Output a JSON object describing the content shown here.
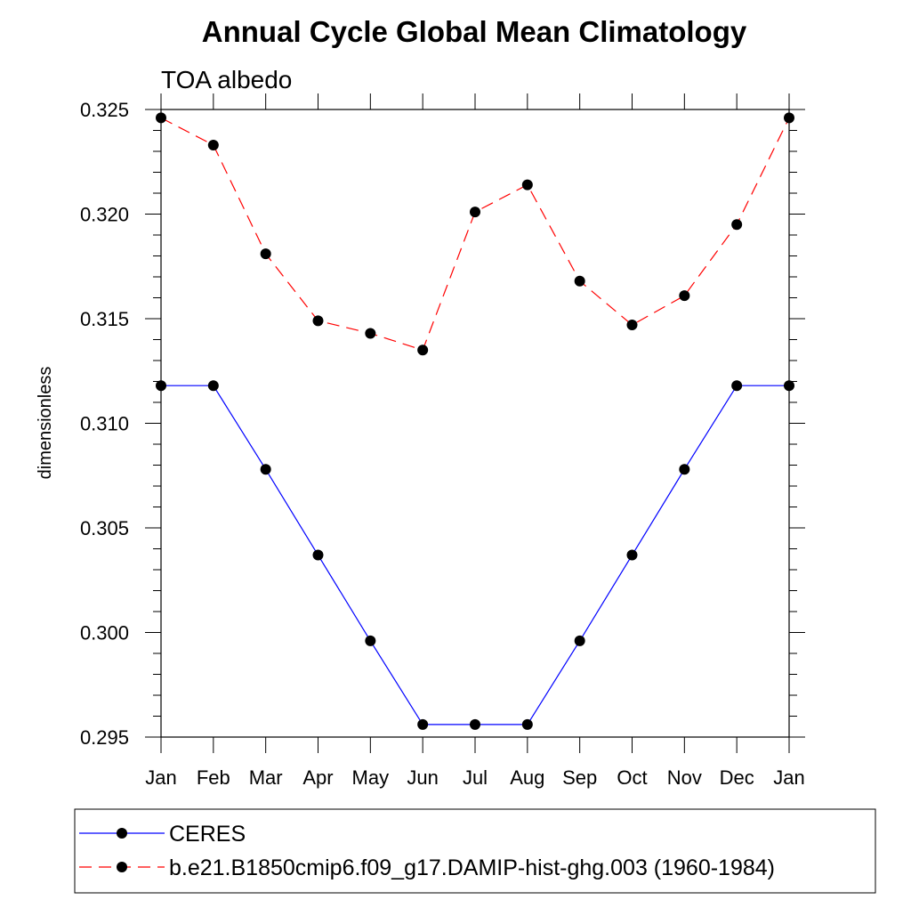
{
  "chart_data": {
    "type": "line",
    "title": "Annual Cycle Global Mean Climatology",
    "subtitle": "TOA albedo",
    "xlabel": "",
    "ylabel": "dimensionless",
    "categories": [
      "Jan",
      "Feb",
      "Mar",
      "Apr",
      "May",
      "Jun",
      "Jul",
      "Aug",
      "Sep",
      "Oct",
      "Nov",
      "Dec",
      "Jan"
    ],
    "ylim": [
      0.295,
      0.325
    ],
    "yticks": [
      "0.295",
      "0.300",
      "0.305",
      "0.310",
      "0.315",
      "0.320",
      "0.325"
    ],
    "grid": false,
    "legend_position": "bottom",
    "series": [
      {
        "name": "CERES",
        "color": "#0000ff",
        "dash": "solid",
        "values": [
          0.3118,
          0.3118,
          0.3078,
          0.3037,
          0.2996,
          0.2956,
          0.2956,
          0.2956,
          0.2996,
          0.3037,
          0.3078,
          0.3118,
          0.3118
        ]
      },
      {
        "name": "b.e21.B1850cmip6.f09_g17.DAMIP-hist-ghg.003 (1960-1984)",
        "color": "#ff0000",
        "dash": "dashed",
        "values": [
          0.3246,
          0.3233,
          0.3181,
          0.3149,
          0.3143,
          0.3135,
          0.3201,
          0.3214,
          0.3168,
          0.3147,
          0.3161,
          0.3195,
          0.3246
        ]
      }
    ]
  }
}
